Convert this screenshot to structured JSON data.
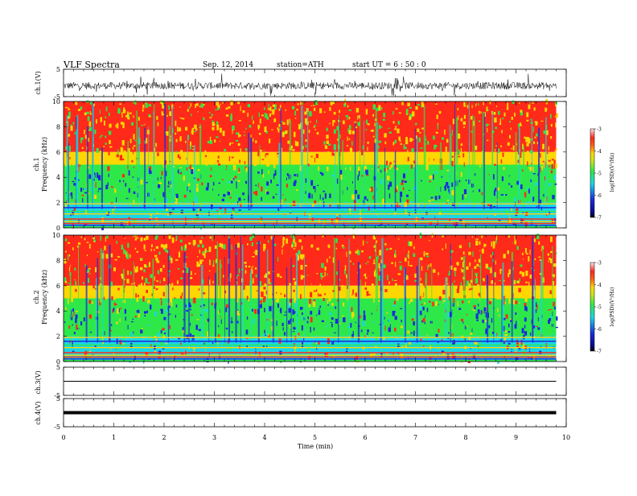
{
  "header": {
    "title": "VLF  Spectra",
    "date": "Sep. 12, 2014",
    "station": "station=ATH",
    "start": "start  UT  =    6  : 50 : 0"
  },
  "chart_data": [
    {
      "type": "line",
      "panel": "ch1-waveform",
      "ylabel": "ch.1(V)",
      "ylim": [
        -5,
        5
      ],
      "yticks": [
        "5",
        "-5"
      ],
      "xlim": [
        0,
        10
      ],
      "series": [
        {
          "values_summary": "noisy broadband signal around ~-1 V, excursions to about -4 and +4 V",
          "x_range": [
            0,
            9.8
          ]
        }
      ]
    },
    {
      "type": "heatmap",
      "panel": "ch1-spectrogram",
      "ylabel": [
        "ch.1",
        "Frequency  (kHz)"
      ],
      "ylim": [
        0,
        10
      ],
      "yticks": [
        "0",
        "2",
        "4",
        "6",
        "8",
        "10"
      ],
      "xlim": [
        0,
        10
      ],
      "data_extent_min": [
        0,
        9.8
      ],
      "colorbar": {
        "label": "log(PSD)(V²/Hz)",
        "range": [
          -7,
          -3
        ],
        "ticks": [
          "-3",
          "-4",
          "-5",
          "-6",
          "-7"
        ]
      },
      "description_levels": "high PSD (red, about -3.5) above ~6 kHz, medium (green, about -5) between 2 and 6 kHz, low (blue, about -6) patches near 3–4 kHz, horizontal lines below 2 kHz"
    },
    {
      "type": "heatmap",
      "panel": "ch2-spectrogram",
      "ylabel": [
        "ch.2",
        "Frequency  (kHz)"
      ],
      "ylim": [
        0,
        10
      ],
      "yticks": [
        "0",
        "2",
        "4",
        "6",
        "8",
        "10"
      ],
      "xlim": [
        0,
        10
      ],
      "colorbar": {
        "label": "log(PSD)(V²/Hz)",
        "range": [
          -7,
          -3
        ],
        "ticks": [
          "-3",
          "-4",
          "-5",
          "-6",
          "-7"
        ]
      }
    },
    {
      "type": "line",
      "panel": "ch3-waveform",
      "ylabel": "ch.3(V)",
      "ylim": [
        -5,
        5
      ],
      "yticks": [
        "5",
        "-5"
      ],
      "series": [
        {
          "level": 0,
          "x_range": [
            0,
            9.8
          ]
        }
      ]
    },
    {
      "type": "line",
      "panel": "ch4-waveform",
      "ylabel": "ch.4(V)",
      "ylim": [
        -5,
        5
      ],
      "yticks": [
        "5",
        "-5"
      ],
      "series": [
        {
          "level": 0,
          "x_range": [
            0,
            9.8
          ]
        }
      ]
    }
  ],
  "xaxis": {
    "xlabel": "Time  (min)",
    "ticks": [
      "0",
      "1",
      "2",
      "3",
      "4",
      "5",
      "6",
      "7",
      "8",
      "9",
      "10"
    ]
  },
  "colors": {
    "high": "#ff2a1a",
    "mid_high": "#ffd700",
    "mid": "#2ee84a",
    "mid_low": "#1ad6e6",
    "low": "#1b2bdb",
    "lowest": "#000000"
  }
}
